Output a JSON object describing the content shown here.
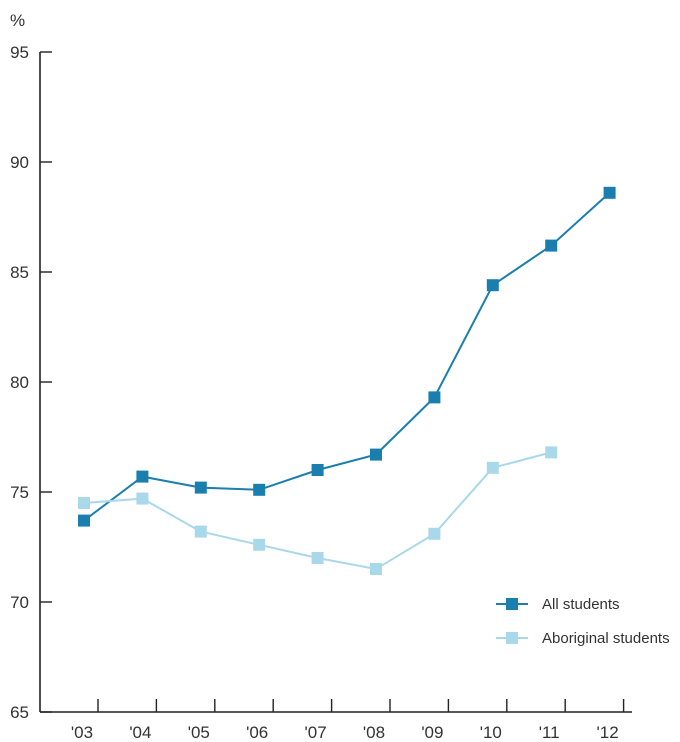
{
  "chart_data": {
    "type": "line",
    "title": "",
    "xlabel": "",
    "ylabel": "%",
    "ylim": [
      65,
      95
    ],
    "yticks": [
      65,
      70,
      75,
      80,
      85,
      90,
      95
    ],
    "categories": [
      "'03",
      "'04",
      "'05",
      "'06",
      "'07",
      "'08",
      "'09",
      "'10",
      "'11",
      "'12"
    ],
    "grid": false,
    "legend_position": "bottom-right",
    "series": [
      {
        "name": "All students",
        "color": "#1a7fae",
        "values": [
          73.7,
          75.7,
          75.2,
          75.1,
          76.0,
          76.7,
          79.3,
          84.4,
          86.2,
          88.6
        ]
      },
      {
        "name": "Aboriginal students",
        "color": "#a9d8ea",
        "values": [
          74.5,
          74.7,
          73.2,
          72.6,
          72.0,
          71.5,
          73.1,
          76.1,
          76.8,
          null
        ]
      }
    ]
  }
}
